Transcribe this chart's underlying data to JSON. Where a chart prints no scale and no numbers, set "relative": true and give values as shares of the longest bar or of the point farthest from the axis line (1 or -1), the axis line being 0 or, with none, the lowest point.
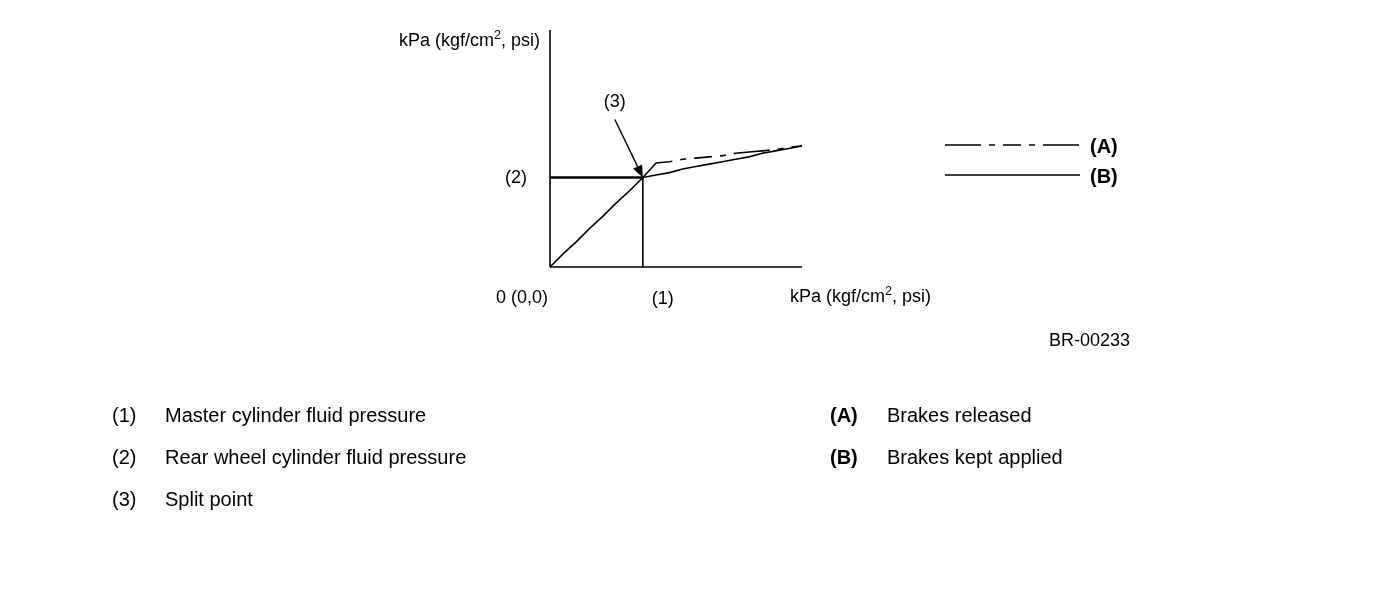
{
  "chart_data": {
    "type": "line",
    "relative": true,
    "xlabel": "kPa (kgf/cm$^{2}$, psi)",
    "legend": "right",
    "categories": [
      null,
      null,
      null,
      null,
      null,
      null,
      null,
      null,
      null,
      null,
      null,
      null,
      null,
      null,
      null,
      null,
      null,
      null,
      null,
      null
    ],
    "series": [
      {
        "name": "(A)",
        "color": "#000000",
        "line_style": "dashed",
        "values": [
          null,
          null,
          null,
          null,
          null,
          null,
          null,
          0.74,
          0.86,
          0.87,
          0.89,
          0.9,
          0.91,
          0.92,
          0.94,
          0.95,
          0.96,
          0.97,
          0.99,
          1
        ]
      },
      {
        "name": "(B)",
        "color": "#000000",
        "line_style": "solid",
        "values": [
          0,
          0.11,
          0.21,
          0.32,
          0.42,
          0.53,
          0.63,
          0.74,
          0.76,
          0.78,
          0.81,
          0.83,
          0.85,
          0.87,
          0.89,
          0.91,
          0.94,
          0.96,
          0.98,
          1
        ]
      }
    ],
    "ref_lines": [
      {
        "axis": "y",
        "value": 0.74
      }
    ],
    "annotations": [
      "(3)",
      "(2)",
      "(1)",
      "0 (0,0)",
      "BR-00233",
      "(1) Master cylinder fluid pressure",
      "(2) Rear wheel cylinder fluid pressure",
      "(3) Split point",
      "(A) Brakes released",
      "(B) Brakes kept applied",
      "kPa (kgf/cm$^{2}$, psi)"
    ]
  }
}
